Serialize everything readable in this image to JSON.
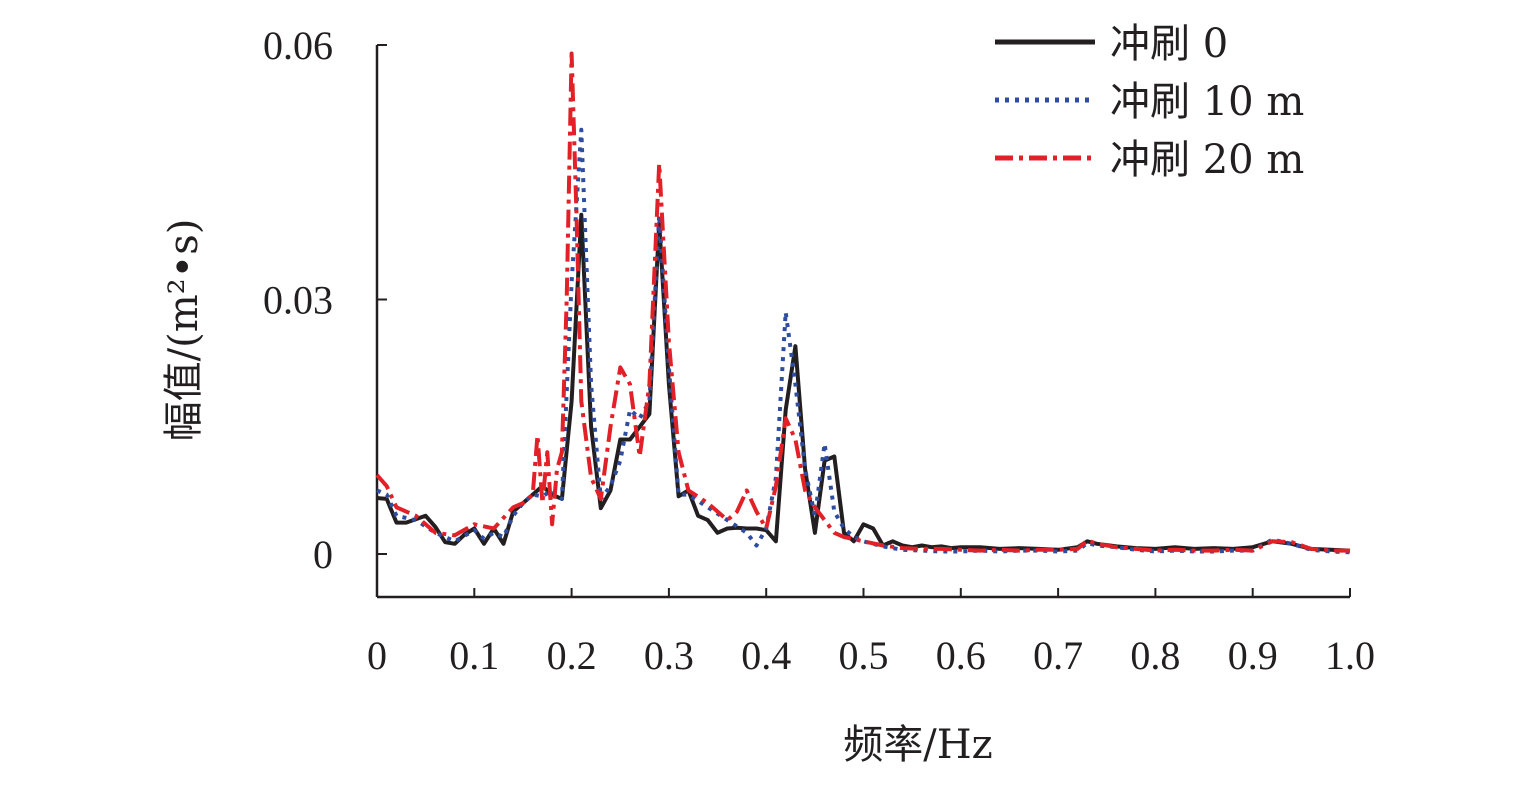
{
  "chart_data": {
    "type": "line",
    "xlabel": "频率/Hz",
    "ylabel": "幅值/(m²•s)",
    "xlim": [
      0,
      1.0
    ],
    "ylim": [
      -0.005,
      0.06
    ],
    "x_ticks": [
      "0",
      "0.1",
      "0.2",
      "0.3",
      "0.4",
      "0.5",
      "0.6",
      "0.7",
      "0.8",
      "0.9",
      "1.0"
    ],
    "y_ticks": [
      "0",
      "0.03",
      "0.06"
    ],
    "legend_position": "top-right",
    "grid": false,
    "series": [
      {
        "name": "冲刷 0",
        "color": "#231f20",
        "dash": "solid",
        "x": [
          0,
          0.01,
          0.02,
          0.03,
          0.05,
          0.06,
          0.07,
          0.08,
          0.09,
          0.1,
          0.11,
          0.12,
          0.13,
          0.14,
          0.15,
          0.16,
          0.17,
          0.18,
          0.19,
          0.2,
          0.21,
          0.22,
          0.23,
          0.24,
          0.25,
          0.26,
          0.27,
          0.28,
          0.29,
          0.3,
          0.31,
          0.32,
          0.33,
          0.34,
          0.35,
          0.36,
          0.37,
          0.38,
          0.39,
          0.4,
          0.41,
          0.42,
          0.43,
          0.44,
          0.45,
          0.46,
          0.47,
          0.48,
          0.49,
          0.5,
          0.51,
          0.52,
          0.53,
          0.54,
          0.55,
          0.56,
          0.57,
          0.58,
          0.59,
          0.6,
          0.62,
          0.64,
          0.66,
          0.68,
          0.7,
          0.72,
          0.73,
          0.74,
          0.76,
          0.78,
          0.8,
          0.82,
          0.84,
          0.86,
          0.88,
          0.9,
          0.92,
          0.94,
          0.96,
          0.98,
          1.0
        ],
        "y": [
          0.0066,
          0.0065,
          0.0037,
          0.0037,
          0.0045,
          0.0032,
          0.0014,
          0.0012,
          0.0023,
          0.003,
          0.0012,
          0.003,
          0.0012,
          0.005,
          0.006,
          0.007,
          0.008,
          0.007,
          0.0065,
          0.018,
          0.04,
          0.015,
          0.0054,
          0.0075,
          0.0135,
          0.0135,
          0.015,
          0.0165,
          0.039,
          0.02,
          0.0068,
          0.0075,
          0.0045,
          0.004,
          0.0025,
          0.003,
          0.0031,
          0.003,
          0.003,
          0.0028,
          0.0015,
          0.017,
          0.0245,
          0.01,
          0.0025,
          0.011,
          0.0115,
          0.0025,
          0.0015,
          0.0035,
          0.003,
          0.001,
          0.0015,
          0.001,
          0.0008,
          0.001,
          0.0008,
          0.0009,
          0.0007,
          0.0008,
          0.0008,
          0.0006,
          0.0007,
          0.0006,
          0.0005,
          0.0008,
          0.0015,
          0.0012,
          0.0009,
          0.0007,
          0.0006,
          0.0008,
          0.0006,
          0.0007,
          0.0006,
          0.0008,
          0.0015,
          0.0012,
          0.0006,
          0.0005,
          0.0004
        ]
      },
      {
        "name": "冲刷 10 m",
        "color": "#2e4da0",
        "dash": "dotted",
        "x": [
          0,
          0.01,
          0.02,
          0.04,
          0.06,
          0.08,
          0.1,
          0.11,
          0.12,
          0.13,
          0.14,
          0.15,
          0.16,
          0.17,
          0.18,
          0.19,
          0.2,
          0.21,
          0.22,
          0.23,
          0.24,
          0.25,
          0.26,
          0.27,
          0.28,
          0.29,
          0.3,
          0.31,
          0.32,
          0.34,
          0.36,
          0.38,
          0.39,
          0.4,
          0.41,
          0.42,
          0.43,
          0.44,
          0.45,
          0.46,
          0.47,
          0.48,
          0.49,
          0.5,
          0.52,
          0.54,
          0.56,
          0.58,
          0.6,
          0.62,
          0.64,
          0.66,
          0.68,
          0.7,
          0.72,
          0.73,
          0.74,
          0.76,
          0.78,
          0.8,
          0.82,
          0.84,
          0.86,
          0.88,
          0.9,
          0.92,
          0.94,
          0.96,
          0.98,
          1.0
        ],
        "y": [
          0.0075,
          0.007,
          0.0045,
          0.004,
          0.0025,
          0.0015,
          0.0028,
          0.0018,
          0.0025,
          0.002,
          0.0045,
          0.006,
          0.007,
          0.0068,
          0.0075,
          0.0065,
          0.032,
          0.05,
          0.02,
          0.0065,
          0.008,
          0.011,
          0.017,
          0.016,
          0.018,
          0.04,
          0.022,
          0.007,
          0.007,
          0.0055,
          0.004,
          0.0025,
          0.001,
          0.003,
          0.009,
          0.0285,
          0.02,
          0.01,
          0.0045,
          0.013,
          0.005,
          0.003,
          0.002,
          0.0015,
          0.0009,
          0.0005,
          0.0004,
          0.0003,
          0.0003,
          0.0004,
          0.0003,
          0.0004,
          0.0004,
          0.0003,
          0.0004,
          0.0013,
          0.001,
          0.0008,
          0.0005,
          0.0003,
          0.0004,
          0.0003,
          0.0003,
          0.0004,
          0.0004,
          0.0017,
          0.0012,
          0.0005,
          0.0003,
          0.0002
        ]
      },
      {
        "name": "冲刷 20 m",
        "color": "#e22028",
        "dash": "dash-dot",
        "x": [
          0,
          0.01,
          0.02,
          0.04,
          0.06,
          0.08,
          0.1,
          0.12,
          0.14,
          0.15,
          0.16,
          0.165,
          0.17,
          0.175,
          0.18,
          0.185,
          0.19,
          0.195,
          0.2,
          0.205,
          0.21,
          0.22,
          0.23,
          0.24,
          0.25,
          0.26,
          0.27,
          0.28,
          0.29,
          0.3,
          0.31,
          0.32,
          0.34,
          0.36,
          0.37,
          0.38,
          0.39,
          0.4,
          0.41,
          0.42,
          0.43,
          0.44,
          0.45,
          0.46,
          0.47,
          0.48,
          0.5,
          0.52,
          0.54,
          0.56,
          0.58,
          0.6,
          0.62,
          0.64,
          0.66,
          0.68,
          0.7,
          0.72,
          0.73,
          0.74,
          0.76,
          0.78,
          0.8,
          0.82,
          0.84,
          0.86,
          0.88,
          0.9,
          0.92,
          0.94,
          0.96,
          0.98,
          1.0
        ],
        "y": [
          0.0093,
          0.008,
          0.0055,
          0.0045,
          0.0025,
          0.0022,
          0.0035,
          0.003,
          0.0055,
          0.006,
          0.007,
          0.014,
          0.006,
          0.012,
          0.0035,
          0.01,
          0.012,
          0.03,
          0.059,
          0.04,
          0.018,
          0.009,
          0.0065,
          0.015,
          0.022,
          0.02,
          0.0115,
          0.02,
          0.046,
          0.025,
          0.012,
          0.0075,
          0.006,
          0.004,
          0.005,
          0.0075,
          0.005,
          0.003,
          0.008,
          0.016,
          0.0135,
          0.0075,
          0.0055,
          0.004,
          0.0025,
          0.002,
          0.0015,
          0.001,
          0.0007,
          0.0006,
          0.0006,
          0.0005,
          0.0004,
          0.0005,
          0.0004,
          0.0005,
          0.0005,
          0.0006,
          0.0016,
          0.0012,
          0.0008,
          0.0006,
          0.0004,
          0.0005,
          0.0004,
          0.0004,
          0.0005,
          0.0004,
          0.0015,
          0.0014,
          0.0006,
          0.0004,
          0.0004
        ]
      }
    ]
  }
}
